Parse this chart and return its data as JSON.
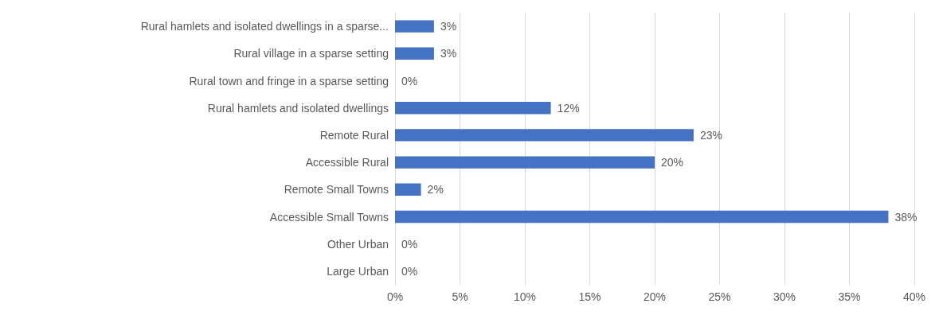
{
  "chart_data": {
    "type": "bar",
    "orientation": "horizontal",
    "categories": [
      "Rural hamlets and isolated dwellings in a sparse...",
      "Rural village in a sparse setting",
      "Rural town and fringe in a sparse setting",
      "Rural hamlets and isolated dwellings",
      "Remote Rural",
      "Accessible Rural",
      "Remote Small Towns",
      "Accessible Small Towns",
      "Other Urban",
      "Large Urban"
    ],
    "values": [
      3,
      3,
      0,
      12,
      23,
      20,
      2,
      38,
      0,
      0
    ],
    "value_labels": [
      "3%",
      "3%",
      "0%",
      "12%",
      "23%",
      "20%",
      "2%",
      "38%",
      "0%",
      "0%"
    ],
    "color": "#4472c4",
    "xlim": [
      0,
      40
    ],
    "xticks": [
      {
        "value": 0,
        "label": "0%"
      },
      {
        "value": 5,
        "label": "5%"
      },
      {
        "value": 10,
        "label": "10%"
      },
      {
        "value": 15,
        "label": "15%"
      },
      {
        "value": 20,
        "label": "20%"
      },
      {
        "value": 25,
        "label": "25%"
      },
      {
        "value": 30,
        "label": "30%"
      },
      {
        "value": 35,
        "label": "35%"
      },
      {
        "value": 40,
        "label": "40%"
      }
    ],
    "grid": "x"
  }
}
